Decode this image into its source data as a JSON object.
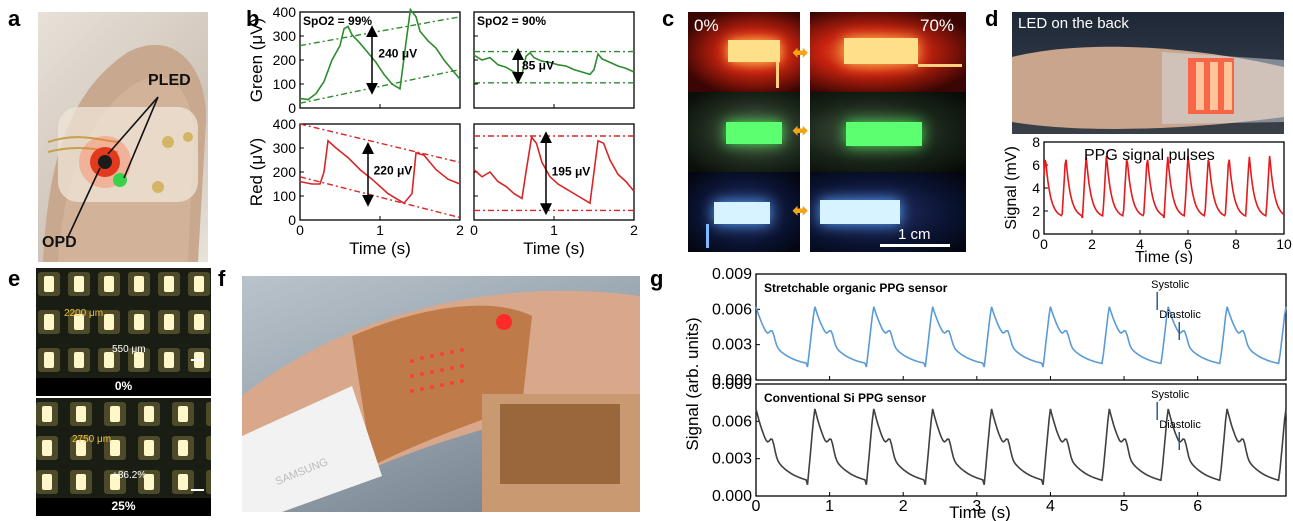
{
  "panel_labels": {
    "a": "a",
    "b": "b",
    "c": "c",
    "d": "d",
    "e": "e",
    "f": "f",
    "g": "g"
  },
  "panel_a": {
    "pled": "PLED",
    "opd": "OPD"
  },
  "panel_b": {
    "ylabel_green": "Green (μV)",
    "ylabel_red": "Red (μV)",
    "xlabel": "Time (s)",
    "spo2_99": "SpO2 = 99%",
    "spo2_90": "SpO2 = 90%",
    "ann_240": "240 μV",
    "ann_85": "85 μV",
    "ann_220": "220 μV",
    "ann_195": "195 μV"
  },
  "panel_c": {
    "pct_0": "0%",
    "pct_70": "70%",
    "scale": "1 cm"
  },
  "panel_d": {
    "caption": "LED on the back",
    "title": "PPG signal pulses",
    "ylabel": "Signal (mV)",
    "xlabel": "Time (s)"
  },
  "panel_e": {
    "pitch_0": "2200 μm",
    "size_0": "550 μm",
    "strain_0": "0%",
    "pitch_25": "2750 μm",
    "size_25": "+86.2%",
    "strain_25": "25%"
  },
  "panel_f": {
    "brand": "SAMSUNG"
  },
  "panel_g": {
    "title_top": "Stretchable organic PPG sensor",
    "title_bottom": "Conventional Si PPG sensor",
    "systolic": "Systolic",
    "diastolic": "Diastolic",
    "ylabel": "Signal (arb. units)",
    "xlabel": "Time (s)"
  },
  "chart_data": [
    {
      "type": "line",
      "id": "b-green-99",
      "title": "SpO2 = 99%",
      "xlabel": "",
      "ylabel": "Green (μV)",
      "xlim": [
        0,
        2
      ],
      "ylim": [
        0,
        400
      ],
      "xticks": [
        0,
        1,
        2
      ],
      "yticks": [
        0,
        100,
        200,
        300,
        400
      ],
      "color": "#2e8b2e",
      "x": [
        0,
        0.1,
        0.2,
        0.3,
        0.4,
        0.5,
        0.55,
        0.6,
        0.65,
        0.75,
        0.85,
        0.95,
        1.05,
        1.15,
        1.25,
        1.32,
        1.38,
        1.45,
        1.5,
        1.6,
        1.7,
        1.8,
        1.9,
        2.0
      ],
      "y": [
        40,
        35,
        60,
        110,
        200,
        260,
        330,
        340,
        305,
        270,
        230,
        190,
        140,
        100,
        80,
        260,
        410,
        380,
        320,
        280,
        250,
        200,
        160,
        120
      ]
    },
    {
      "type": "line",
      "id": "b-green-90",
      "title": "SpO2 = 90%",
      "xlabel": "",
      "ylabel": "",
      "xlim": [
        0,
        2
      ],
      "ylim": [
        0,
        400
      ],
      "xticks": [
        0,
        1,
        2
      ],
      "yticks": [
        0,
        100,
        200,
        300,
        400
      ],
      "color": "#2e8b2e",
      "x": [
        0,
        0.1,
        0.2,
        0.3,
        0.4,
        0.5,
        0.6,
        0.65,
        0.7,
        0.75,
        0.85,
        0.95,
        1.05,
        1.15,
        1.25,
        1.35,
        1.45,
        1.5,
        1.55,
        1.6,
        1.7,
        1.8,
        1.9,
        2.0
      ],
      "y": [
        220,
        200,
        210,
        180,
        170,
        150,
        140,
        215,
        230,
        210,
        195,
        190,
        180,
        175,
        160,
        150,
        140,
        160,
        225,
        205,
        190,
        175,
        165,
        150
      ]
    },
    {
      "type": "line",
      "id": "b-red-99",
      "title": "",
      "xlabel": "Time (s)",
      "ylabel": "Red (μV)",
      "xlim": [
        0,
        2
      ],
      "ylim": [
        0,
        400
      ],
      "xticks": [
        0,
        1,
        2
      ],
      "yticks": [
        0,
        100,
        200,
        300,
        400
      ],
      "color": "#d62728",
      "x": [
        0,
        0.15,
        0.25,
        0.3,
        0.35,
        0.45,
        0.6,
        0.75,
        0.9,
        1.0,
        1.1,
        1.2,
        1.3,
        1.4,
        1.45,
        1.55,
        1.7,
        1.85,
        2.0
      ],
      "y": [
        160,
        150,
        150,
        200,
        330,
        300,
        260,
        210,
        170,
        140,
        110,
        90,
        70,
        110,
        280,
        270,
        210,
        170,
        150
      ]
    },
    {
      "type": "line",
      "id": "b-red-90",
      "title": "",
      "xlabel": "Time (s)",
      "ylabel": "",
      "xlim": [
        0,
        2
      ],
      "ylim": [
        0,
        400
      ],
      "xticks": [
        0,
        1,
        2
      ],
      "yticks": [
        0,
        100,
        200,
        300,
        400
      ],
      "color": "#d62728",
      "x": [
        0,
        0.1,
        0.2,
        0.3,
        0.4,
        0.5,
        0.6,
        0.65,
        0.72,
        0.78,
        0.85,
        0.95,
        1.05,
        1.15,
        1.3,
        1.45,
        1.5,
        1.55,
        1.62,
        1.7,
        1.8,
        1.9,
        2.0
      ],
      "y": [
        210,
        180,
        200,
        160,
        140,
        110,
        90,
        200,
        345,
        320,
        240,
        180,
        150,
        130,
        100,
        70,
        200,
        330,
        320,
        250,
        190,
        160,
        120
      ]
    },
    {
      "type": "line",
      "id": "d-ppg",
      "title": "PPG signal pulses",
      "xlabel": "Time (s)",
      "ylabel": "Signal (mV)",
      "xlim": [
        0,
        10
      ],
      "ylim": [
        0,
        8
      ],
      "xticks": [
        0,
        2,
        4,
        6,
        8,
        10
      ],
      "yticks": [
        0,
        2,
        4,
        6,
        8
      ],
      "color": "#e41a1c",
      "period": 0.85,
      "peak": 6.9,
      "trough": 1.4
    },
    {
      "type": "line",
      "id": "g-organic",
      "title": "Stretchable organic PPG sensor",
      "xlabel": "",
      "ylabel": "",
      "xlim": [
        0,
        7.2
      ],
      "ylim": [
        0,
        0.009
      ],
      "xticks": [
        0,
        1,
        2,
        3,
        4,
        5,
        6
      ],
      "yticks": [
        0.0,
        0.003,
        0.006,
        0.009
      ],
      "color": "#5b9bd5",
      "period": 0.8,
      "peak": 0.0063,
      "trough": 0.0011
    },
    {
      "type": "line",
      "id": "g-silicon",
      "title": "Conventional Si PPG sensor",
      "xlabel": "Time (s)",
      "ylabel": "",
      "xlim": [
        0,
        7.2
      ],
      "ylim": [
        0,
        0.009
      ],
      "xticks": [
        0,
        1,
        2,
        3,
        4,
        5,
        6
      ],
      "yticks": [
        0.0,
        0.003,
        0.006,
        0.009
      ],
      "color": "#404040",
      "period": 0.8,
      "peak": 0.0071,
      "trough": 0.0009
    }
  ]
}
